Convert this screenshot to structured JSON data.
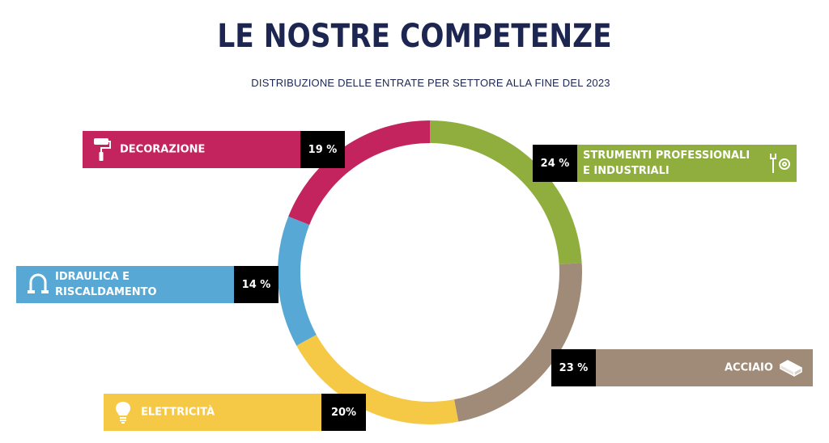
{
  "title": "LE NOSTRE COMPETENZE",
  "subtitle": "DISTRIBUZIONE DELLE ENTRATE PER SETTORE ALLA FINE DEL 2023",
  "chart_data": {
    "type": "pie",
    "title": "LE NOSTRE COMPETENZE",
    "subtitle": "DISTRIBUZIONE DELLE ENTRATE PER SETTORE ALLA FINE DEL 2023",
    "categories": [
      "STRUMENTI PROFESSIONALI E INDUSTRIALI",
      "ACCIAIO",
      "ELETTRICITÀ",
      "IDRAULICA E RISCALDAMENTO",
      "DECORAZIONE"
    ],
    "values": [
      24,
      23,
      20,
      14,
      19
    ],
    "labels": [
      "24 %",
      "23 %",
      "20%",
      "14 %",
      "19 %"
    ],
    "colors": [
      "#8fae3e",
      "#a08b78",
      "#f5c945",
      "#58a8d6",
      "#c3245e"
    ]
  },
  "segments": [
    {
      "key": "strumenti",
      "label": "STRUMENTI PROFESSIONALI\nE INDUSTRIALI",
      "pct": "24 %",
      "color": "#8fae3e",
      "icon": "tools-icon"
    },
    {
      "key": "acciaio",
      "label": "ACCIAIO",
      "pct": "23 %",
      "color": "#a08b78",
      "icon": "steel-bar-icon"
    },
    {
      "key": "elettricita",
      "label": "ELETTRICITÀ",
      "pct": "20%",
      "color": "#f5c945",
      "icon": "lightbulb-icon"
    },
    {
      "key": "idraulica",
      "label": "IDRAULICA E\nRISCALDAMENTO",
      "pct": "14 %",
      "color": "#58a8d6",
      "icon": "pipe-icon"
    },
    {
      "key": "decorazione",
      "label": "DECORAZIONE",
      "pct": "19 %",
      "color": "#c3245e",
      "icon": "paint-roller-icon"
    }
  ]
}
